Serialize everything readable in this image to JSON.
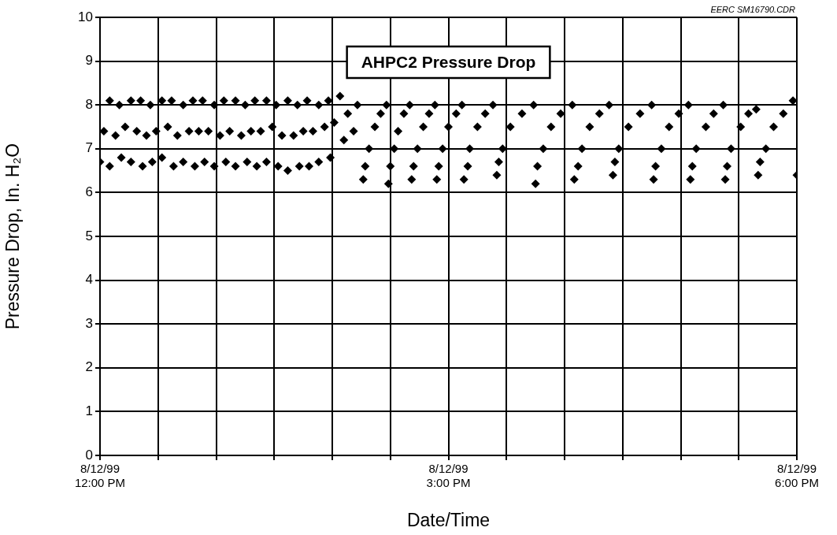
{
  "chart_data": {
    "type": "scatter",
    "title": "AHPC2 Pressure Drop",
    "xlabel": "Date/Time",
    "ylabel": "Pressure Drop, In. H₂O",
    "annotations": [
      "EERC SM16790.CDR"
    ],
    "xlim": [
      "1999-08-12T12:00",
      "1999-08-12T18:00"
    ],
    "ylim": [
      0,
      10
    ],
    "xticks": [
      {
        "value": "1999-08-12T12:00",
        "label": "8/12/99 12:00 PM"
      },
      {
        "value": "1999-08-12T12:30",
        "label": null
      },
      {
        "value": "1999-08-12T13:00",
        "label": null
      },
      {
        "value": "1999-08-12T13:30",
        "label": null
      },
      {
        "value": "1999-08-12T14:00",
        "label": null
      },
      {
        "value": "1999-08-12T14:30",
        "label": null
      },
      {
        "value": "1999-08-12T15:00",
        "label": "8/12/99 3:00 PM"
      },
      {
        "value": "1999-08-12T15:30",
        "label": null
      },
      {
        "value": "1999-08-12T16:00",
        "label": null
      },
      {
        "value": "1999-08-12T16:30",
        "label": null
      },
      {
        "value": "1999-08-12T17:00",
        "label": null
      },
      {
        "value": "1999-08-12T17:30",
        "label": null
      },
      {
        "value": "1999-08-12T18:00",
        "label": "8/12/99 6:00 PM"
      }
    ],
    "yticks": [
      0,
      1,
      2,
      3,
      4,
      5,
      6,
      7,
      8,
      9,
      10
    ],
    "grid": true,
    "legend": false,
    "marker": "diamond",
    "series": [
      {
        "color": "#000000",
        "x": [
          "1999-08-12T12:00",
          "1999-08-12T12:02",
          "1999-08-12T12:05",
          "1999-08-12T12:05",
          "1999-08-12T12:08",
          "1999-08-12T12:10",
          "1999-08-12T12:11",
          "1999-08-12T12:13",
          "1999-08-12T12:16",
          "1999-08-12T12:16",
          "1999-08-12T12:19",
          "1999-08-12T12:21",
          "1999-08-12T12:22",
          "1999-08-12T12:24",
          "1999-08-12T12:26",
          "1999-08-12T12:27",
          "1999-08-12T12:29",
          "1999-08-12T12:32",
          "1999-08-12T12:32",
          "1999-08-12T12:35",
          "1999-08-12T12:37",
          "1999-08-12T12:38",
          "1999-08-12T12:40",
          "1999-08-12T12:43",
          "1999-08-12T12:43",
          "1999-08-12T12:46",
          "1999-08-12T12:48",
          "1999-08-12T12:49",
          "1999-08-12T12:51",
          "1999-08-12T12:53",
          "1999-08-12T12:54",
          "1999-08-12T12:56",
          "1999-08-12T12:59",
          "1999-08-12T12:59",
          "1999-08-12T13:02",
          "1999-08-12T13:04",
          "1999-08-12T13:05",
          "1999-08-12T13:07",
          "1999-08-12T13:10",
          "1999-08-12T13:10",
          "1999-08-12T13:13",
          "1999-08-12T13:15",
          "1999-08-12T13:16",
          "1999-08-12T13:18",
          "1999-08-12T13:20",
          "1999-08-12T13:21",
          "1999-08-12T13:23",
          "1999-08-12T13:26",
          "1999-08-12T13:26",
          "1999-08-12T13:29",
          "1999-08-12T13:31",
          "1999-08-12T13:32",
          "1999-08-12T13:34",
          "1999-08-12T13:37",
          "1999-08-12T13:37",
          "1999-08-12T13:40",
          "1999-08-12T13:42",
          "1999-08-12T13:43",
          "1999-08-12T13:45",
          "1999-08-12T13:47",
          "1999-08-12T13:48",
          "1999-08-12T13:50",
          "1999-08-12T13:53",
          "1999-08-12T13:53",
          "1999-08-12T13:56",
          "1999-08-12T13:58",
          "1999-08-12T13:59",
          "1999-08-12T14:01",
          "1999-08-12T14:04",
          "1999-08-12T14:06",
          "1999-08-12T14:08",
          "1999-08-12T14:11",
          "1999-08-12T14:13",
          "1999-08-12T14:16",
          "1999-08-12T14:17",
          "1999-08-12T14:19",
          "1999-08-12T14:22",
          "1999-08-12T14:25",
          "1999-08-12T14:28",
          "1999-08-12T14:29",
          "1999-08-12T14:30",
          "1999-08-12T14:32",
          "1999-08-12T14:34",
          "1999-08-12T14:37",
          "1999-08-12T14:40",
          "1999-08-12T14:41",
          "1999-08-12T14:42",
          "1999-08-12T14:44",
          "1999-08-12T14:47",
          "1999-08-12T14:50",
          "1999-08-12T14:53",
          "1999-08-12T14:54",
          "1999-08-12T14:55",
          "1999-08-12T14:57",
          "1999-08-12T15:00",
          "1999-08-12T15:04",
          "1999-08-12T15:07",
          "1999-08-12T15:08",
          "1999-08-12T15:10",
          "1999-08-12T15:11",
          "1999-08-12T15:15",
          "1999-08-12T15:19",
          "1999-08-12T15:23",
          "1999-08-12T15:25",
          "1999-08-12T15:26",
          "1999-08-12T15:28",
          "1999-08-12T15:32",
          "1999-08-12T15:38",
          "1999-08-12T15:44",
          "1999-08-12T15:45",
          "1999-08-12T15:46",
          "1999-08-12T15:49",
          "1999-08-12T15:53",
          "1999-08-12T15:58",
          "1999-08-12T16:04",
          "1999-08-12T16:05",
          "1999-08-12T16:07",
          "1999-08-12T16:09",
          "1999-08-12T16:13",
          "1999-08-12T16:18",
          "1999-08-12T16:23",
          "1999-08-12T16:25",
          "1999-08-12T16:26",
          "1999-08-12T16:28",
          "1999-08-12T16:33",
          "1999-08-12T16:39",
          "1999-08-12T16:45",
          "1999-08-12T16:46",
          "1999-08-12T16:47",
          "1999-08-12T16:50",
          "1999-08-12T16:54",
          "1999-08-12T16:59",
          "1999-08-12T17:04",
          "1999-08-12T17:05",
          "1999-08-12T17:06",
          "1999-08-12T17:08",
          "1999-08-12T17:13",
          "1999-08-12T17:17",
          "1999-08-12T17:22",
          "1999-08-12T17:23",
          "1999-08-12T17:24",
          "1999-08-12T17:26",
          "1999-08-12T17:31",
          "1999-08-12T17:35",
          "1999-08-12T17:39",
          "1999-08-12T17:40",
          "1999-08-12T17:41",
          "1999-08-12T17:44",
          "1999-08-12T17:48",
          "1999-08-12T17:53",
          "1999-08-12T17:58",
          "1999-08-12T18:00"
        ],
        "values": [
          6.7,
          7.4,
          8.1,
          6.6,
          7.3,
          8.0,
          6.8,
          7.5,
          8.1,
          6.7,
          7.4,
          8.1,
          6.6,
          7.3,
          8.0,
          6.7,
          7.4,
          8.1,
          6.8,
          7.5,
          8.1,
          6.6,
          7.3,
          8.0,
          6.7,
          7.4,
          8.1,
          6.6,
          7.4,
          8.1,
          6.7,
          7.4,
          8.0,
          6.6,
          7.3,
          8.1,
          6.7,
          7.4,
          8.1,
          6.6,
          7.3,
          8.0,
          6.7,
          7.4,
          8.1,
          6.6,
          7.4,
          8.1,
          6.7,
          7.5,
          8.0,
          6.6,
          7.3,
          8.1,
          6.5,
          7.3,
          8.0,
          6.6,
          7.4,
          8.1,
          6.6,
          7.4,
          8.0,
          6.7,
          7.5,
          8.1,
          6.8,
          7.6,
          8.2,
          7.2,
          7.8,
          7.4,
          8.0,
          6.3,
          6.6,
          7.0,
          7.5,
          7.8,
          8.0,
          6.2,
          6.6,
          7.0,
          7.4,
          7.8,
          8.0,
          6.3,
          6.6,
          7.0,
          7.5,
          7.8,
          8.0,
          6.3,
          6.6,
          7.0,
          7.5,
          7.8,
          8.0,
          6.3,
          6.6,
          7.0,
          7.5,
          7.8,
          8.0,
          6.4,
          6.7,
          7.0,
          7.5,
          7.8,
          8.0,
          6.2,
          6.6,
          7.0,
          7.5,
          7.8,
          8.0,
          6.3,
          6.6,
          7.0,
          7.5,
          7.8,
          8.0,
          6.4,
          6.7,
          7.0,
          7.5,
          7.8,
          8.0,
          6.3,
          6.6,
          7.0,
          7.5,
          7.8,
          8.0,
          6.3,
          6.6,
          7.0,
          7.5,
          7.8,
          8.0,
          6.3,
          6.6,
          7.0,
          7.5,
          7.8,
          7.9,
          6.4,
          6.7,
          7.0,
          7.5,
          7.8,
          8.1,
          6.4
        ]
      }
    ]
  }
}
